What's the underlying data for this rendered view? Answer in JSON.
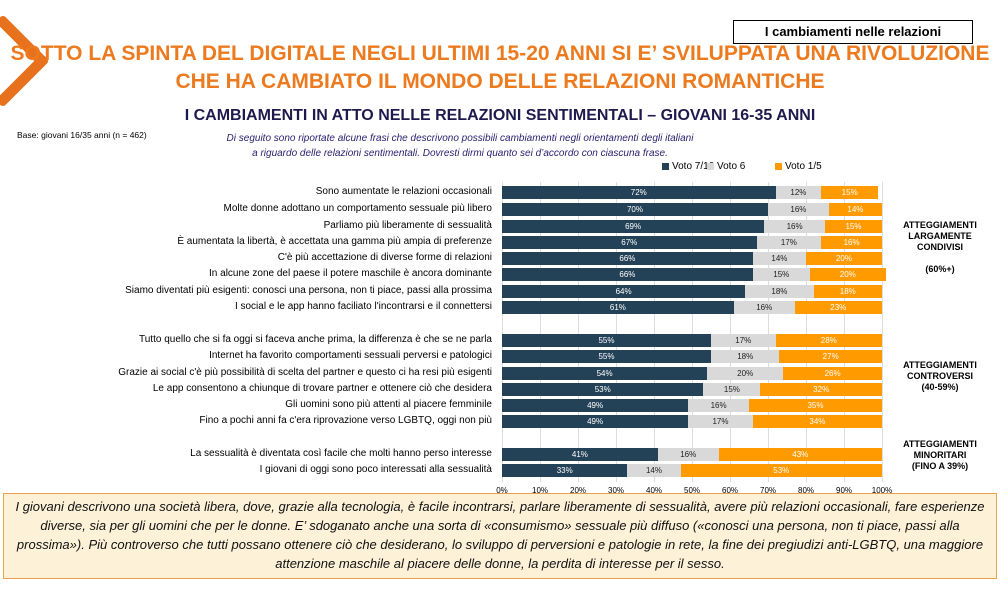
{
  "tag": "I cambiamenti nelle relazioni",
  "title_line1": "SOTTO LA SPINTA DEL DIGITALE NEGLI ULTIMI 15-20 ANNI SI E’ SVILUPPATA UNA RIVOLUZIONE",
  "title_line2": "CHE HA CAMBIATO IL MONDO DELLE RELAZIONI ROMANTICHE",
  "subtitle": "I CAMBIAMENTI IN ATTO NELLE RELAZIONI SENTIMENTALI – GIOVANI 16-35 ANNI",
  "base": "Base: giovani 16/35 anni (n = 462)",
  "intro_line1": "Di seguito sono riportate alcune frasi che descrivono possibili cambiamenti negli orientamenti degli italiani",
  "intro_line2": "a riguardo delle relazioni sentimentali. Dovresti dirmi quanto sei d’accordo con ciascuna frase.",
  "groups": [
    {
      "line1": "ATTEGGIAMENTI",
      "line2": "LARGAMENTE",
      "line3": "CONDIVISI",
      "line4": "(60%+)"
    },
    {
      "line1": "ATTEGGIAMENTI",
      "line2": "CONTROVERSI",
      "line3": "(40-59%)"
    },
    {
      "line1": "ATTEGGIAMENTI",
      "line2": "MINORITARI",
      "line3": "(FINO A 39%)"
    }
  ],
  "note": "I giovani descrivono una società libera, dove, grazie alla tecnologia, è facile incontrarsi, parlare liberamente di sessualità, avere più relazioni occasionali, fare esperienze diverse, sia per gli uomini che per le donne. E’ sdoganato anche una sorta di «consumismo» sessuale più diffuso («conosci una persona, non ti piace, passi alla prossima»). Più controverso che tutti possano ottenere ciò che desiderano, lo sviluppo di perversioni e patologie in rete, la fine dei pregiudizi anti-LGBTQ, una maggiore attenzione maschile al piacere delle donne, la perdita di interesse per il sesso.",
  "chart_data": {
    "type": "bar",
    "orientation": "horizontal-stacked-100",
    "xlim": [
      0,
      100
    ],
    "ticks": [
      "0%",
      "10%",
      "20%",
      "30%",
      "40%",
      "50%",
      "60%",
      "70%",
      "80%",
      "90%",
      "100%"
    ],
    "colors": [
      "#234257",
      "#d9d9d9",
      "#ff9a00"
    ],
    "legend": [
      "Voto 7/10",
      "Voto 6",
      "Voto 1/5"
    ],
    "categories": [
      "Sono aumentate le relazioni occasionali",
      "Molte donne adottano un comportamento sessuale più libero",
      "Parliamo più liberamente di sessualità",
      "È aumentata la libertà, è accettata una gamma più ampia di  preferenze",
      "C'è più accettazione di diverse forme di relazioni",
      "In alcune zone del paese il potere maschile è ancora dominante",
      "Siamo diventati più esigenti: conosci una persona, non ti piace, passi alla prossima",
      "I social e le app hanno faciliato l'incontrarsi e il connettersi",
      "Tutto quello che si fa oggi si faceva anche prima, la differenza è  che se ne parla",
      "Internet ha favorito comportamenti sessuali perversi e patologici",
      "Grazie ai social c'è più possibilità di scelta del partner e questo ci ha resi più esigenti",
      "Le app consentono a chiunque di trovare partner e ottenere ciò che desidera",
      "Gli uomini sono più attenti al piacere femminile",
      "Fino a pochi anni fa c'era riprovazione verso LGBTQ, oggi non più",
      "La sessualità è diventata così facile che molti hanno perso interesse",
      "I giovani di oggi sono poco interessati alla sessualità"
    ],
    "series": [
      {
        "name": "Voto 7/10",
        "values": [
          72,
          70,
          69,
          67,
          66,
          66,
          64,
          61,
          55,
          55,
          54,
          53,
          49,
          49,
          41,
          33
        ]
      },
      {
        "name": "Voto 6",
        "values": [
          12,
          16,
          16,
          17,
          14,
          15,
          18,
          16,
          17,
          18,
          20,
          15,
          16,
          17,
          16,
          14
        ]
      },
      {
        "name": "Voto 1/5",
        "values": [
          15,
          14,
          15,
          16,
          20,
          20,
          18,
          23,
          28,
          27,
          26,
          32,
          35,
          34,
          43,
          53
        ]
      }
    ]
  }
}
